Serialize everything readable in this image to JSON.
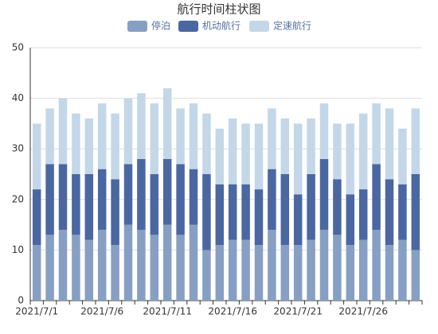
{
  "chart_data": {
    "type": "stacked-bar",
    "title": "航行时间柱状图",
    "categories": [
      "2021/7/1",
      null,
      null,
      null,
      null,
      "2021/7/6",
      null,
      null,
      null,
      null,
      "2021/7/11",
      null,
      null,
      null,
      null,
      "2021/7/16",
      null,
      null,
      null,
      null,
      "2021/7/21",
      null,
      null,
      null,
      null,
      "2021/7/26",
      null,
      null,
      null,
      null
    ],
    "series": [
      {
        "name": "停泊",
        "color": "#879fc3",
        "values": [
          11,
          13,
          14,
          13,
          12,
          14,
          11,
          15,
          14,
          13,
          15,
          13,
          15,
          10,
          11,
          12,
          12,
          11,
          14,
          11,
          11,
          12,
          14,
          13,
          11,
          12,
          14,
          11,
          12,
          10
        ]
      },
      {
        "name": "机动航行",
        "color": "#4a67a2",
        "values": [
          11,
          14,
          13,
          12,
          13,
          12,
          13,
          12,
          14,
          12,
          13,
          14,
          11,
          15,
          12,
          11,
          11,
          11,
          12,
          14,
          10,
          13,
          14,
          11,
          10,
          10,
          13,
          13,
          11,
          15
        ]
      },
      {
        "name": "定速航行",
        "color": "#c4d7e9",
        "values": [
          13,
          11,
          13,
          12,
          11,
          13,
          13,
          13,
          13,
          14,
          14,
          11,
          13,
          12,
          11,
          13,
          12,
          13,
          12,
          11,
          14,
          11,
          11,
          11,
          14,
          15,
          12,
          14,
          11,
          13
        ]
      }
    ],
    "ylim": [
      0,
      50
    ],
    "yticks": [
      0,
      10,
      20,
      30,
      40,
      50
    ],
    "grid": true
  }
}
